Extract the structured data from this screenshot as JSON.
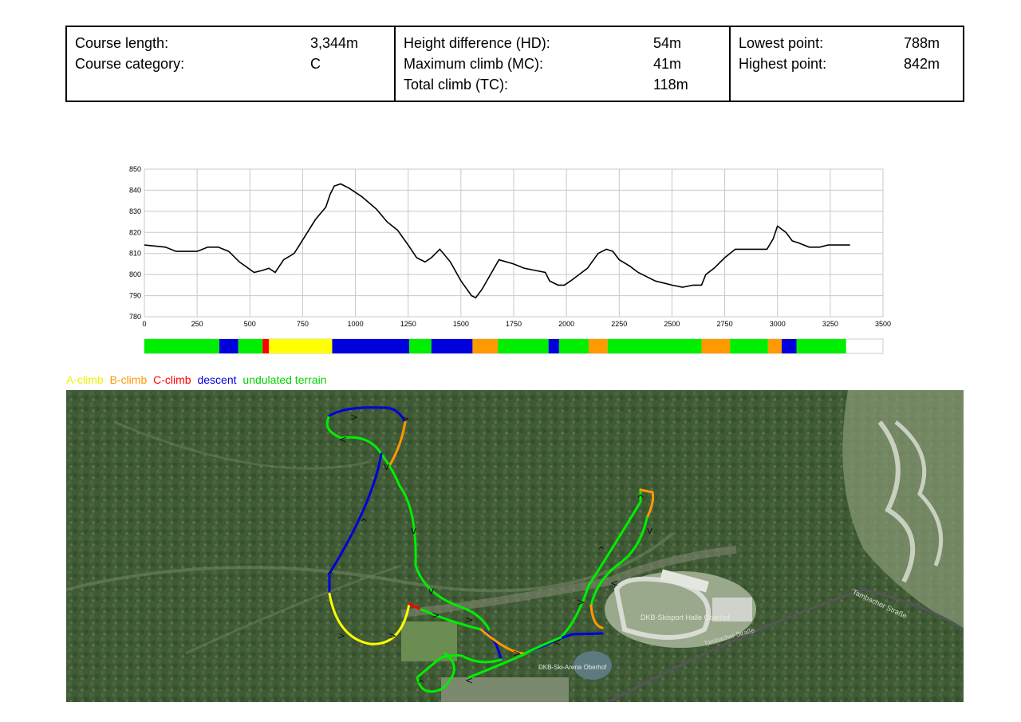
{
  "info": [
    {
      "rows": [
        {
          "label": "Course length:",
          "value": "3,344m"
        },
        {
          "label": "Course category:",
          "value": "C"
        }
      ]
    },
    {
      "rows": [
        {
          "label": "Height difference (HD):",
          "value": "54m"
        },
        {
          "label": "Maximum climb (MC):",
          "value": "41m"
        },
        {
          "label": "Total climb (TC):",
          "value": "118m"
        }
      ]
    },
    {
      "rows": [
        {
          "label": "Lowest point:",
          "value": "788m"
        },
        {
          "label": "Highest point:",
          "value": "842m"
        }
      ]
    }
  ],
  "chart_data": {
    "type": "line",
    "xlim": [
      0,
      3500
    ],
    "ylim": [
      780,
      850
    ],
    "x_ticks": [
      0,
      250,
      500,
      750,
      1000,
      1250,
      1500,
      1750,
      2000,
      2250,
      2500,
      2750,
      3000,
      3250,
      3500
    ],
    "y_ticks": [
      780,
      790,
      800,
      810,
      820,
      830,
      840,
      850
    ],
    "grid": true,
    "x": [
      0,
      100,
      150,
      250,
      300,
      350,
      400,
      450,
      520,
      560,
      590,
      620,
      660,
      710,
      760,
      810,
      860,
      880,
      900,
      930,
      970,
      1030,
      1100,
      1150,
      1200,
      1250,
      1290,
      1330,
      1360,
      1400,
      1450,
      1500,
      1550,
      1570,
      1600,
      1640,
      1680,
      1750,
      1800,
      1850,
      1900,
      1920,
      1960,
      1990,
      2020,
      2060,
      2100,
      2150,
      2190,
      2220,
      2250,
      2300,
      2340,
      2380,
      2420,
      2460,
      2500,
      2550,
      2600,
      2640,
      2660,
      2700,
      2750,
      2800,
      2850,
      2880,
      2920,
      2950,
      2980,
      3000,
      3040,
      3070,
      3100,
      3150,
      3200,
      3240,
      3270,
      3300,
      3344
    ],
    "y": [
      814,
      813,
      811,
      811,
      813,
      813,
      811,
      806,
      801,
      802,
      803,
      801,
      807,
      810,
      818,
      826,
      832,
      838,
      842,
      843,
      841,
      837,
      831,
      825,
      821,
      814,
      808,
      806,
      808,
      812,
      806,
      797,
      790,
      789,
      793,
      800,
      807,
      805,
      803,
      802,
      801,
      797,
      795,
      795,
      797,
      800,
      803,
      810,
      812,
      811,
      807,
      804,
      801,
      799,
      797,
      796,
      795,
      794,
      795,
      795,
      800,
      803,
      808,
      812,
      812,
      812,
      812,
      812,
      817,
      823,
      820,
      816,
      815,
      813,
      813,
      814,
      814,
      814,
      814
    ],
    "segments": [
      {
        "type": "undulated terrain",
        "from": 0,
        "to": 355
      },
      {
        "type": "descent",
        "from": 355,
        "to": 445
      },
      {
        "type": "undulated terrain",
        "from": 445,
        "to": 560
      },
      {
        "type": "C-climb",
        "from": 560,
        "to": 590
      },
      {
        "type": "A-climb",
        "from": 590,
        "to": 890
      },
      {
        "type": "descent",
        "from": 890,
        "to": 1255
      },
      {
        "type": "undulated terrain",
        "from": 1255,
        "to": 1360
      },
      {
        "type": "descent",
        "from": 1360,
        "to": 1555
      },
      {
        "type": "B-climb",
        "from": 1555,
        "to": 1675
      },
      {
        "type": "undulated terrain",
        "from": 1675,
        "to": 1915
      },
      {
        "type": "descent",
        "from": 1915,
        "to": 1965
      },
      {
        "type": "undulated terrain",
        "from": 1965,
        "to": 2105
      },
      {
        "type": "B-climb",
        "from": 2105,
        "to": 2195
      },
      {
        "type": "undulated terrain",
        "from": 2195,
        "to": 2640
      },
      {
        "type": "B-climb",
        "from": 2640,
        "to": 2775
      },
      {
        "type": "undulated terrain",
        "from": 2775,
        "to": 2955
      },
      {
        "type": "B-climb",
        "from": 2955,
        "to": 3020
      },
      {
        "type": "descent",
        "from": 3020,
        "to": 3090
      },
      {
        "type": "undulated terrain",
        "from": 3090,
        "to": 3325
      }
    ]
  },
  "legend": [
    {
      "label": "A-climb",
      "color": "#f0f000"
    },
    {
      "label": "B-climb",
      "color": "#ff9900"
    },
    {
      "label": "C-climb",
      "color": "#ff0000"
    },
    {
      "label": "descent",
      "color": "#0000dd"
    },
    {
      "label": "undulated terrain",
      "color": "#00d400"
    }
  ],
  "colors": {
    "A-climb": "#ffff00",
    "B-climb": "#ff9900",
    "C-climb": "#ff0000",
    "descent": "#0000dd",
    "undulated terrain": "#00ee00"
  },
  "map": {
    "labels": {
      "arena": "DKB-Ski-Arena Oberhof",
      "hall": "DKB-Skisport Halle Oberhof",
      "street1": "Tambacher Straße",
      "street2": "Tambacher Straße"
    }
  }
}
